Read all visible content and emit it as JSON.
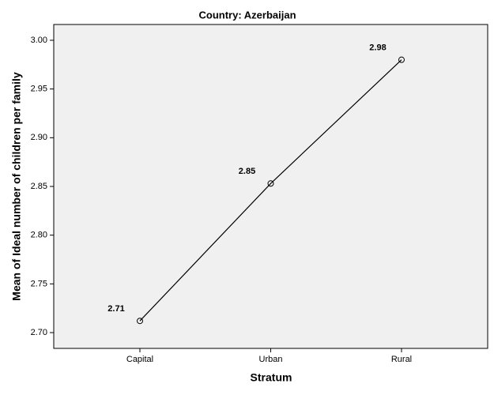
{
  "chart_data": {
    "type": "line",
    "title": "Country: Azerbaijan",
    "x_label": "Stratum",
    "y_label": "Mean of Ideal number of children per family",
    "categories": [
      "Capital",
      "Urban",
      "Rural"
    ],
    "values": [
      2.712,
      2.853,
      2.98
    ],
    "value_labels": [
      "2.71",
      "2.85",
      "2.98"
    ],
    "color": "#000000",
    "ylim": [
      2.6838,
      3.0162
    ],
    "yticks": [
      {
        "value": 2.7,
        "label": "2.70"
      },
      2.75,
      {
        "value": 2.8,
        "label": "2.80"
      },
      2.85,
      {
        "value": 2.9,
        "label": "2.90"
      },
      2.95,
      {
        "value": 3.0,
        "label": "3.00"
      }
    ]
  }
}
